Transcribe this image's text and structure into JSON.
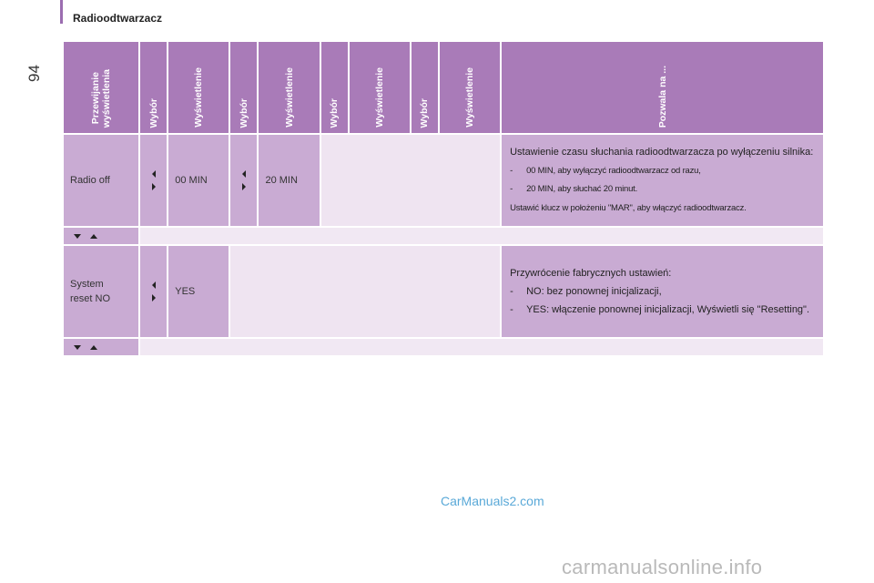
{
  "header": {
    "section_title": "Radioodtwarzacz",
    "page_number": "94"
  },
  "table": {
    "headers": [
      "Przewijanie\nwyświetlenia",
      "Wybór",
      "Wyświetlenie",
      "Wybór",
      "Wyświetlenie",
      "Wybór",
      "Wyświetlenie",
      "Wybór",
      "Wyświetlenie",
      "Pozwala na ..."
    ],
    "row1": {
      "display": "Radio off",
      "value1": "00 MIN",
      "value2": "20 MIN",
      "desc_intro": "Ustawienie czasu słuchania radioodtwarzacza po wyłączeniu silnika:",
      "desc_items": [
        "00 MIN, aby wyłączyć radioodtwarzacz od razu,",
        "20 MIN, aby słuchać 20 minut."
      ],
      "desc_note": "Ustawić klucz w położeniu \"MAR\", aby włączyć radioodtwarzacz."
    },
    "row2": {
      "display": "System\nreset NO",
      "value1": "YES",
      "desc_intro": "Przywrócenie fabrycznych ustawień:",
      "desc_items": [
        "NO: bez ponownej inicjalizacji,",
        "YES: włączenie ponownej inicjalizacji, Wyświetli się \"Resetting\"."
      ]
    },
    "dash": "-"
  },
  "watermarks": {
    "top": "CarManuals2.com",
    "bottom": "carmanualsonline.info"
  }
}
